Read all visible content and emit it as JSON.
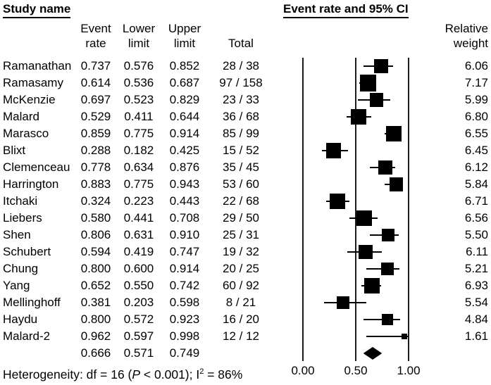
{
  "headers": {
    "study_name": "Study name",
    "ci_title": "Event rate and 95% CI",
    "columns": {
      "event_rate": [
        "Event",
        "rate"
      ],
      "lower_limit": [
        "Lower",
        "limit"
      ],
      "upper_limit": [
        "Upper",
        "limit"
      ],
      "total": "Total",
      "relative_weight": [
        "Relative",
        "weight"
      ]
    }
  },
  "chart_data": {
    "type": "scatter",
    "variant": "forest_plot",
    "title": "Event rate and 95% CI",
    "xlabel": "Event rate",
    "x_axis": {
      "range": [
        0,
        1
      ],
      "ticks": [
        "0.00",
        "0.50",
        "1.00"
      ],
      "tick_values": [
        0,
        0.5,
        1
      ],
      "gridlines_at": [
        0,
        0.5,
        1
      ]
    },
    "studies": [
      {
        "name": "Ramanathan",
        "event_rate": "0.737",
        "lower_limit": "0.576",
        "upper_limit": "0.852",
        "total": "28 / 38",
        "relative_weight": "6.06"
      },
      {
        "name": "Ramasamy",
        "event_rate": "0.614",
        "lower_limit": "0.536",
        "upper_limit": "0.687",
        "total": "97 / 158",
        "relative_weight": "7.17"
      },
      {
        "name": "McKenzie",
        "event_rate": "0.697",
        "lower_limit": "0.523",
        "upper_limit": "0.829",
        "total": "23 / 33",
        "relative_weight": "5.99"
      },
      {
        "name": "Malard",
        "event_rate": "0.529",
        "lower_limit": "0.411",
        "upper_limit": "0.644",
        "total": "36 / 68",
        "relative_weight": "6.80"
      },
      {
        "name": "Marasco",
        "event_rate": "0.859",
        "lower_limit": "0.775",
        "upper_limit": "0.914",
        "total": "85 / 99",
        "relative_weight": "6.55"
      },
      {
        "name": "Blixt",
        "event_rate": "0.288",
        "lower_limit": "0.182",
        "upper_limit": "0.425",
        "total": "15 / 52",
        "relative_weight": "6.45"
      },
      {
        "name": "Clemenceau",
        "event_rate": "0.778",
        "lower_limit": "0.634",
        "upper_limit": "0.876",
        "total": "35 / 45",
        "relative_weight": "6.12"
      },
      {
        "name": "Harrington",
        "event_rate": "0.883",
        "lower_limit": "0.775",
        "upper_limit": "0.943",
        "total": "53 / 60",
        "relative_weight": "5.84"
      },
      {
        "name": "Itchaki",
        "event_rate": "0.324",
        "lower_limit": "0.223",
        "upper_limit": "0.443",
        "total": "22 / 68",
        "relative_weight": "6.71"
      },
      {
        "name": "Liebers",
        "event_rate": "0.580",
        "lower_limit": "0.441",
        "upper_limit": "0.708",
        "total": "29 / 50",
        "relative_weight": "6.56"
      },
      {
        "name": "Shen",
        "event_rate": "0.806",
        "lower_limit": "0.631",
        "upper_limit": "0.910",
        "total": "25 / 31",
        "relative_weight": "5.50"
      },
      {
        "name": "Schubert",
        "event_rate": "0.594",
        "lower_limit": "0.419",
        "upper_limit": "0.747",
        "total": "19 / 32",
        "relative_weight": "6.11"
      },
      {
        "name": "Chung",
        "event_rate": "0.800",
        "lower_limit": "0.600",
        "upper_limit": "0.914",
        "total": "20 / 25",
        "relative_weight": "5.21"
      },
      {
        "name": "Yang",
        "event_rate": "0.652",
        "lower_limit": "0.550",
        "upper_limit": "0.742",
        "total": "60 / 92",
        "relative_weight": "6.93"
      },
      {
        "name": "Mellinghoff",
        "event_rate": "0.381",
        "lower_limit": "0.203",
        "upper_limit": "0.598",
        "total": "8 / 21",
        "relative_weight": "5.54"
      },
      {
        "name": "Haydu",
        "event_rate": "0.800",
        "lower_limit": "0.572",
        "upper_limit": "0.923",
        "total": "16 / 20",
        "relative_weight": "4.84"
      },
      {
        "name": "Malard-2",
        "event_rate": "0.962",
        "lower_limit": "0.597",
        "upper_limit": "0.998",
        "total": "12 / 12",
        "relative_weight": "1.61"
      }
    ],
    "summary": {
      "event_rate": "0.666",
      "lower_limit": "0.571",
      "upper_limit": "0.749"
    },
    "marker_color": "#000000"
  },
  "footer": {
    "seg1": "Heterogeneity: df = 16 (",
    "p_italic": "P",
    "seg2": " < 0.001); I",
    "sup": "2",
    "seg3": " = 86%"
  }
}
